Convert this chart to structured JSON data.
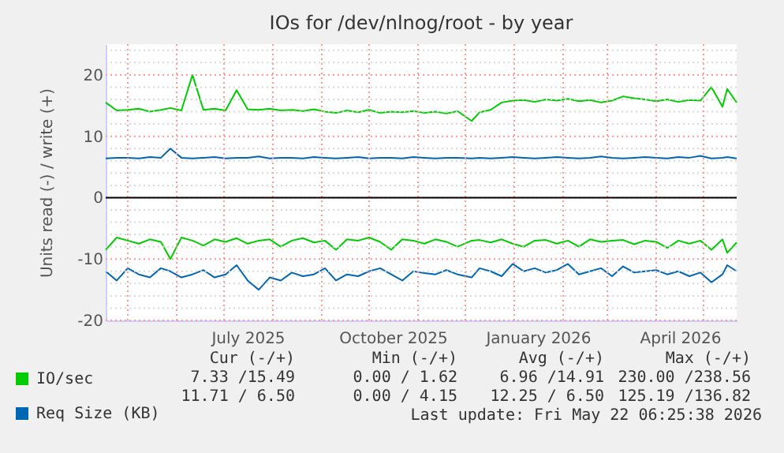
{
  "chart_data": {
    "type": "line",
    "title": "IOs for /dev/nlnog/root - by year",
    "ylabel": "Units read (-) / write (+)",
    "x": [
      "2025-04-17",
      "2025-04-24",
      "2025-05-01",
      "2025-05-08",
      "2025-05-15",
      "2025-05-22",
      "2025-05-28",
      "2025-06-04",
      "2025-06-11",
      "2025-06-18",
      "2025-06-25",
      "2025-07-02",
      "2025-07-09",
      "2025-07-16",
      "2025-07-23",
      "2025-07-30",
      "2025-08-06",
      "2025-08-13",
      "2025-08-20",
      "2025-08-27",
      "2025-09-03",
      "2025-09-10",
      "2025-09-17",
      "2025-09-24",
      "2025-10-01",
      "2025-10-08",
      "2025-10-15",
      "2025-10-22",
      "2025-10-29",
      "2025-11-05",
      "2025-11-12",
      "2025-11-19",
      "2025-11-26",
      "2025-12-05",
      "2025-12-10",
      "2025-12-17",
      "2025-12-24",
      "2025-12-31",
      "2026-01-07",
      "2026-01-14",
      "2026-01-21",
      "2026-01-28",
      "2026-02-04",
      "2026-02-11",
      "2026-02-18",
      "2026-02-25",
      "2026-03-04",
      "2026-03-11",
      "2026-03-18",
      "2026-03-25",
      "2026-04-01",
      "2026-04-08",
      "2026-04-15",
      "2026-04-22",
      "2026-04-29",
      "2026-05-06",
      "2026-05-13",
      "2026-05-16",
      "2026-05-22"
    ],
    "series": [
      {
        "name": "IO/sec",
        "color": "#00cc00",
        "values": [
          15.5,
          14.2,
          14.3,
          14.5,
          14,
          14.3,
          14.6,
          14.2,
          20,
          14.3,
          14.5,
          14.2,
          17.5,
          14.4,
          14.3,
          14.5,
          14.2,
          14.3,
          14.1,
          14.4,
          14,
          13.8,
          14.2,
          13.9,
          14.3,
          13.8,
          14,
          13.9,
          14.1,
          13.8,
          14,
          13.7,
          14.1,
          12.5,
          13.9,
          14.3,
          15.5,
          15.8,
          15.9,
          15.6,
          16,
          15.8,
          16.1,
          15.7,
          15.9,
          15.5,
          15.8,
          16.5,
          16.2,
          16,
          15.7,
          16,
          15.6,
          15.9,
          15.8,
          18,
          14.8,
          17.7,
          15.5
        ]
      },
      {
        "color": "#00cc00",
        "values": [
          -8.5,
          -6.5,
          -7,
          -7.5,
          -6.8,
          -7.2,
          -10,
          -6.5,
          -7,
          -7.8,
          -6.8,
          -7.2,
          -6.6,
          -7.5,
          -7,
          -6.8,
          -8,
          -7,
          -6.6,
          -7.3,
          -7,
          -8.5,
          -6.8,
          -7,
          -6.5,
          -7.2,
          -8.5,
          -6.8,
          -7,
          -7.5,
          -6.8,
          -7.2,
          -8,
          -7,
          -6.9,
          -7.3,
          -6.8,
          -7.5,
          -8,
          -7,
          -6.9,
          -7.5,
          -7,
          -8,
          -6.8,
          -7.2,
          -7,
          -6.9,
          -7.6,
          -7,
          -7.2,
          -8.2,
          -7,
          -7.5,
          -7,
          -8.5,
          -6.8,
          -9,
          -7.3
        ]
      },
      {
        "name": "Req Size (KB)",
        "color": "#0066b3",
        "values": [
          6.4,
          6.5,
          6.5,
          6.4,
          6.6,
          6.5,
          8,
          6.5,
          6.4,
          6.5,
          6.6,
          6.4,
          6.5,
          6.5,
          6.7,
          6.4,
          6.5,
          6.5,
          6.4,
          6.6,
          6.5,
          6.4,
          6.5,
          6.6,
          6.4,
          6.5,
          6.5,
          6.4,
          6.6,
          6.5,
          6.4,
          6.5,
          6.5,
          6.4,
          6.5,
          6.4,
          6.5,
          6.6,
          6.5,
          6.4,
          6.5,
          6.6,
          6.5,
          6.4,
          6.5,
          6.7,
          6.5,
          6.4,
          6.5,
          6.6,
          6.5,
          6.4,
          6.6,
          6.5,
          6.8,
          6.4,
          6.5,
          6.6,
          6.4
        ]
      },
      {
        "color": "#0066b3",
        "values": [
          -12,
          -13.5,
          -11.5,
          -12.5,
          -13,
          -11.5,
          -12,
          -13,
          -12.5,
          -11.8,
          -13,
          -12.5,
          -11,
          -13.5,
          -15,
          -13,
          -13.5,
          -12.2,
          -12.8,
          -12.5,
          -11.5,
          -13.5,
          -12.5,
          -12.8,
          -12,
          -11.5,
          -12.5,
          -13.5,
          -12,
          -12.3,
          -12.5,
          -11.8,
          -12.5,
          -13,
          -11.5,
          -12,
          -12.8,
          -10.8,
          -12,
          -11.5,
          -12.2,
          -11.8,
          -10.8,
          -12.5,
          -12,
          -11.5,
          -12.8,
          -11.2,
          -12.2,
          -12,
          -11.8,
          -12.5,
          -12,
          -12.8,
          -12.2,
          -13.8,
          -12.5,
          -11,
          -12
        ]
      }
    ],
    "xlim": [
      "2025-04-17",
      "2026-05-22"
    ],
    "xticks": [
      {
        "value": "2025-05-01",
        "label": null
      },
      {
        "value": "2025-06-01",
        "label": null
      },
      {
        "value": "2025-07-01",
        "label": null
      },
      {
        "value": "2025-07-16",
        "label": "July 2025"
      },
      {
        "value": "2025-08-01",
        "label": null
      },
      {
        "value": "2025-09-01",
        "label": null
      },
      {
        "value": "2025-10-01",
        "label": null
      },
      {
        "value": "2025-10-16",
        "label": "October 2025"
      },
      {
        "value": "2025-11-01",
        "label": null
      },
      {
        "value": "2025-12-01",
        "label": null
      },
      {
        "value": "2026-01-01",
        "label": null
      },
      {
        "value": "2026-01-16",
        "label": "January 2026"
      },
      {
        "value": "2026-02-01",
        "label": null
      },
      {
        "value": "2026-03-01",
        "label": null
      },
      {
        "value": "2026-04-01",
        "label": null
      },
      {
        "value": "2026-04-16",
        "label": "April 2026"
      },
      {
        "value": "2026-05-01",
        "label": null
      }
    ],
    "ylim": [
      -20,
      25
    ],
    "yticks": [
      -20,
      {
        "value": -18,
        "label": null
      },
      {
        "value": -16,
        "label": null
      },
      {
        "value": -14,
        "label": null
      },
      {
        "value": -12,
        "label": null
      },
      -10,
      {
        "value": -8,
        "label": null
      },
      {
        "value": -6,
        "label": null
      },
      {
        "value": -4,
        "label": null
      },
      {
        "value": -2,
        "label": null
      },
      0,
      {
        "value": 2,
        "label": null
      },
      {
        "value": 4,
        "label": null
      },
      {
        "value": 6,
        "label": null
      },
      {
        "value": 8,
        "label": null
      },
      10,
      {
        "value": 12,
        "label": null
      },
      {
        "value": 14,
        "label": null
      },
      {
        "value": 16,
        "label": null
      },
      {
        "value": 18,
        "label": null
      },
      20,
      {
        "value": 22,
        "label": null
      },
      {
        "value": 24,
        "label": null
      }
    ],
    "ref_lines": [
      {
        "axis": "y",
        "value": 0,
        "color": "#000000"
      }
    ],
    "grid": true,
    "legend": "bottom left",
    "marker": "none",
    "line_style": "solid",
    "annotations": [
      "Cur (-/+)",
      "Min (-/+)",
      "Avg (-/+)",
      "Max (-/+)",
      "7.33 /15.49",
      "0.00 / 1.62",
      "6.96 /14.91",
      "230.00 /238.56",
      "11.71 / 6.50",
      "0.00 / 4.15",
      "12.25 / 6.50",
      "125.19 /136.82",
      "Last update: Fri May 22 06:25:38 2026"
    ]
  }
}
